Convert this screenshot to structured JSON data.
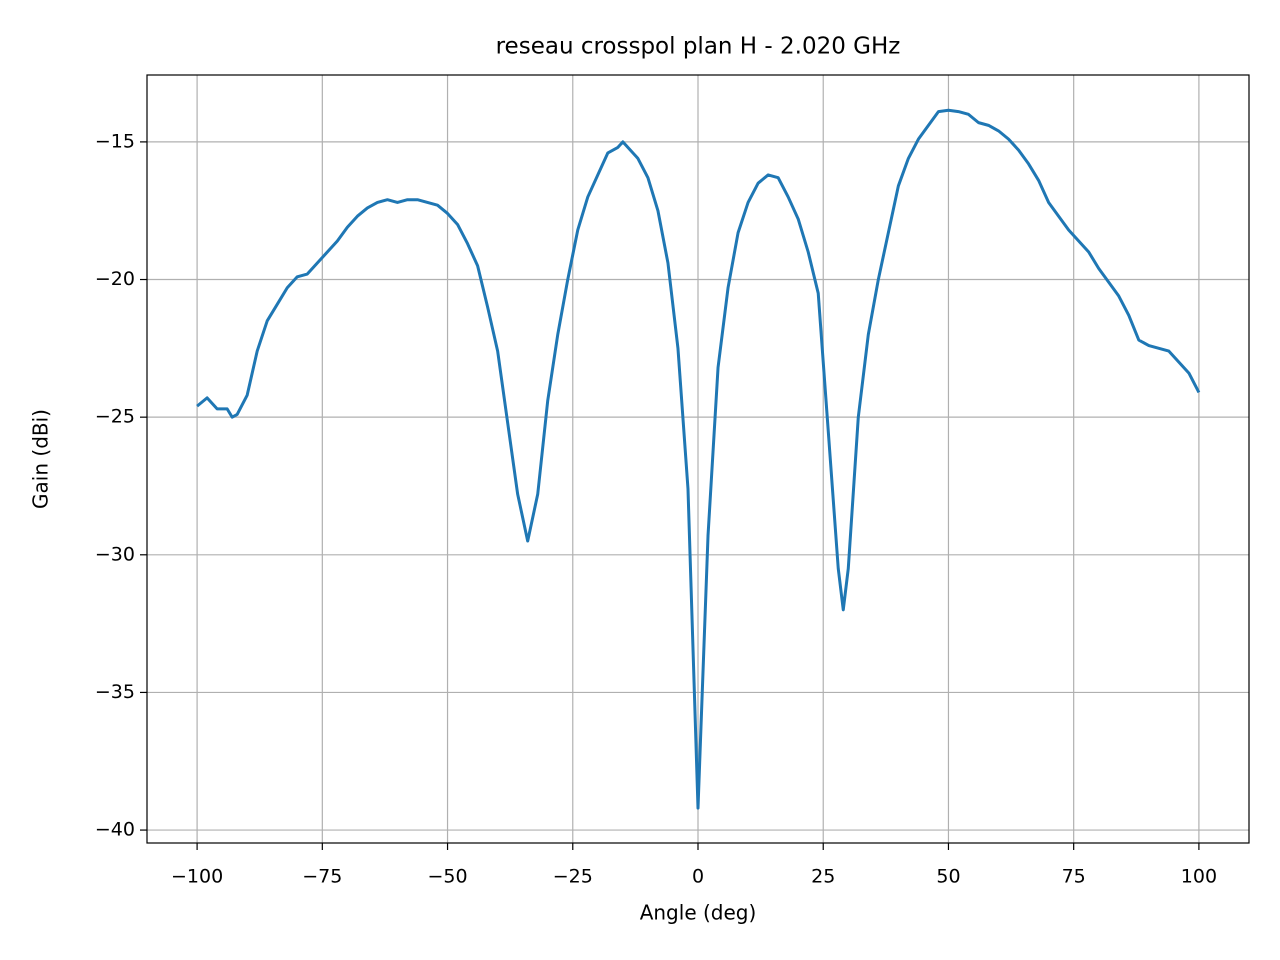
{
  "chart_data": {
    "type": "line",
    "title": "reseau crosspol plan H - 2.020 GHz",
    "x_label": "Angle (deg)",
    "y_label": "Gain (dBi)",
    "x": [
      -100,
      -98,
      -96,
      -94,
      -93,
      -92,
      -90,
      -88,
      -86,
      -84,
      -82,
      -80,
      -78,
      -76,
      -74,
      -72,
      -70,
      -68,
      -66,
      -64,
      -62,
      -60,
      -58,
      -56,
      -54,
      -52,
      -50,
      -48,
      -46,
      -44,
      -42,
      -40,
      -38,
      -36,
      -34,
      -32,
      -30,
      -28,
      -26,
      -24,
      -22,
      -20,
      -18,
      -16,
      -15,
      -14,
      -12,
      -10,
      -8,
      -6,
      -4,
      -2,
      0,
      2,
      4,
      6,
      8,
      10,
      12,
      14,
      16,
      18,
      20,
      22,
      24,
      26,
      28,
      29,
      30,
      32,
      34,
      36,
      38,
      40,
      42,
      44,
      46,
      48,
      50,
      52,
      54,
      56,
      58,
      60,
      62,
      64,
      66,
      68,
      70,
      72,
      74,
      76,
      78,
      80,
      82,
      84,
      86,
      88,
      90,
      92,
      94,
      96,
      98,
      100
    ],
    "series": [
      {
        "name": "Gain",
        "color": "#1f77b4",
        "values": [
          -24.6,
          -24.3,
          -24.7,
          -24.7,
          -25.0,
          -24.9,
          -24.2,
          -22.6,
          -21.5,
          -20.9,
          -20.3,
          -19.9,
          -19.8,
          -19.4,
          -19.0,
          -18.6,
          -18.1,
          -17.7,
          -17.4,
          -17.2,
          -17.1,
          -17.2,
          -17.1,
          -17.1,
          -17.2,
          -17.3,
          -17.6,
          -18.0,
          -18.7,
          -19.5,
          -21.0,
          -22.6,
          -25.2,
          -27.8,
          -29.5,
          -27.8,
          -24.4,
          -22.0,
          -20.0,
          -18.2,
          -17.0,
          -16.2,
          -15.4,
          -15.2,
          -15.0,
          -15.2,
          -15.6,
          -16.3,
          -17.5,
          -19.4,
          -22.5,
          -27.6,
          -39.2,
          -29.3,
          -23.2,
          -20.3,
          -18.3,
          -17.2,
          -16.5,
          -16.2,
          -16.3,
          -17.0,
          -17.8,
          -19.0,
          -20.5,
          -25.5,
          -30.5,
          -32.0,
          -30.5,
          -25.0,
          -22.0,
          -20.0,
          -18.3,
          -16.6,
          -15.6,
          -14.9,
          -14.4,
          -13.9,
          -13.85,
          -13.9,
          -14.0,
          -14.3,
          -14.4,
          -14.6,
          -14.9,
          -15.3,
          -15.8,
          -16.4,
          -17.2,
          -17.7,
          -18.2,
          -18.6,
          -19.0,
          -19.6,
          -20.1,
          -20.6,
          -21.3,
          -22.2,
          -22.4,
          -22.5,
          -22.6,
          -23.0,
          -23.4,
          -24.1
        ]
      }
    ],
    "xlim": [
      -110,
      110
    ],
    "ylim": [
      -40.47,
      -12.57
    ],
    "xticks": [
      {
        "value": -100,
        "label": "−100"
      },
      {
        "value": -75,
        "label": "−75"
      },
      {
        "value": -50,
        "label": "−50"
      },
      {
        "value": -25,
        "label": "−25"
      },
      0,
      25,
      50,
      75,
      100
    ],
    "yticks": [
      {
        "value": -40,
        "label": "−40"
      },
      {
        "value": -35,
        "label": "−35"
      },
      {
        "value": -30,
        "label": "−30"
      },
      {
        "value": -25,
        "label": "−25"
      },
      {
        "value": -20,
        "label": "−20"
      },
      {
        "value": -15,
        "label": "−15"
      }
    ],
    "grid": true
  }
}
